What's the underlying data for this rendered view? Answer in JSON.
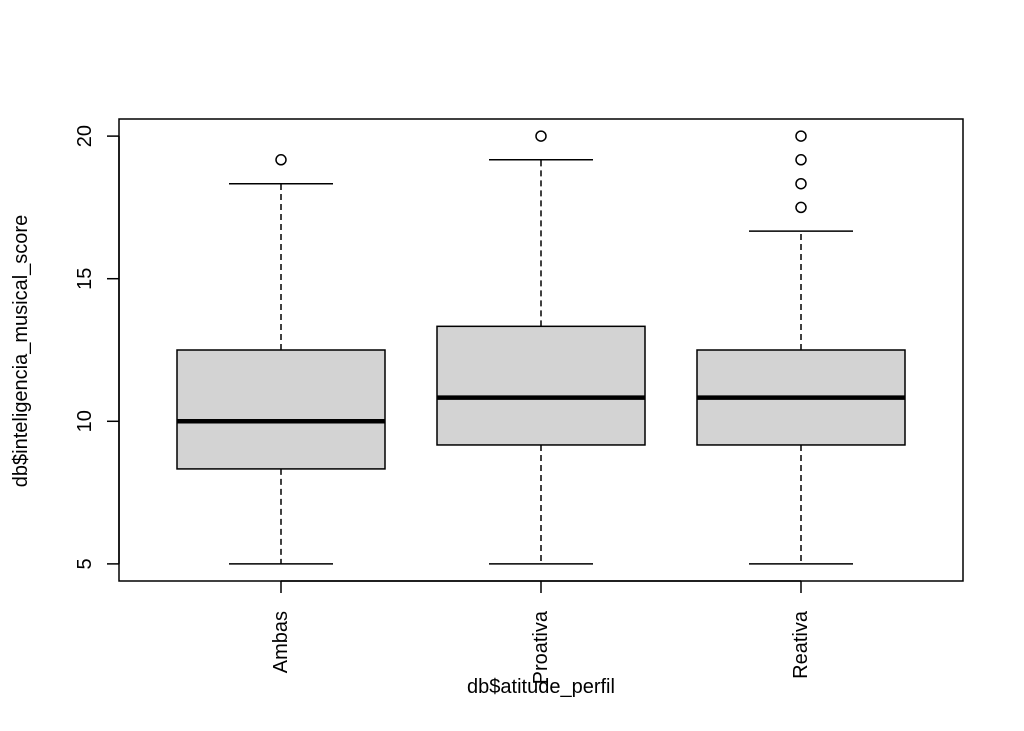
{
  "chart_data": {
    "type": "boxplot",
    "title": "",
    "xlabel": "db$atitude_perfil",
    "ylabel": "db$inteligencia_musical_score",
    "ylim": [
      4.4,
      20.6
    ],
    "y_ticks": [
      5,
      10,
      15,
      20
    ],
    "y_tick_labels": [
      "5",
      "10",
      "15",
      "20"
    ],
    "categories": [
      "Ambas",
      "Proativa",
      "Reativa"
    ],
    "box_fill": "#d3d3d3",
    "line_color": "#000000",
    "boxes": [
      {
        "name": "Ambas",
        "whisker_low": 5,
        "q1": 8.33,
        "median": 10,
        "q3": 12.5,
        "whisker_high": 18.33,
        "outliers": [
          19.17
        ]
      },
      {
        "name": "Proativa",
        "whisker_low": 5,
        "q1": 9.17,
        "median": 10.83,
        "q3": 13.33,
        "whisker_high": 19.17,
        "outliers": [
          20
        ]
      },
      {
        "name": "Reativa",
        "whisker_low": 5,
        "q1": 9.17,
        "median": 10.83,
        "q3": 12.5,
        "whisker_high": 16.67,
        "outliers": [
          17.5,
          18.33,
          19.17,
          20
        ]
      }
    ]
  }
}
